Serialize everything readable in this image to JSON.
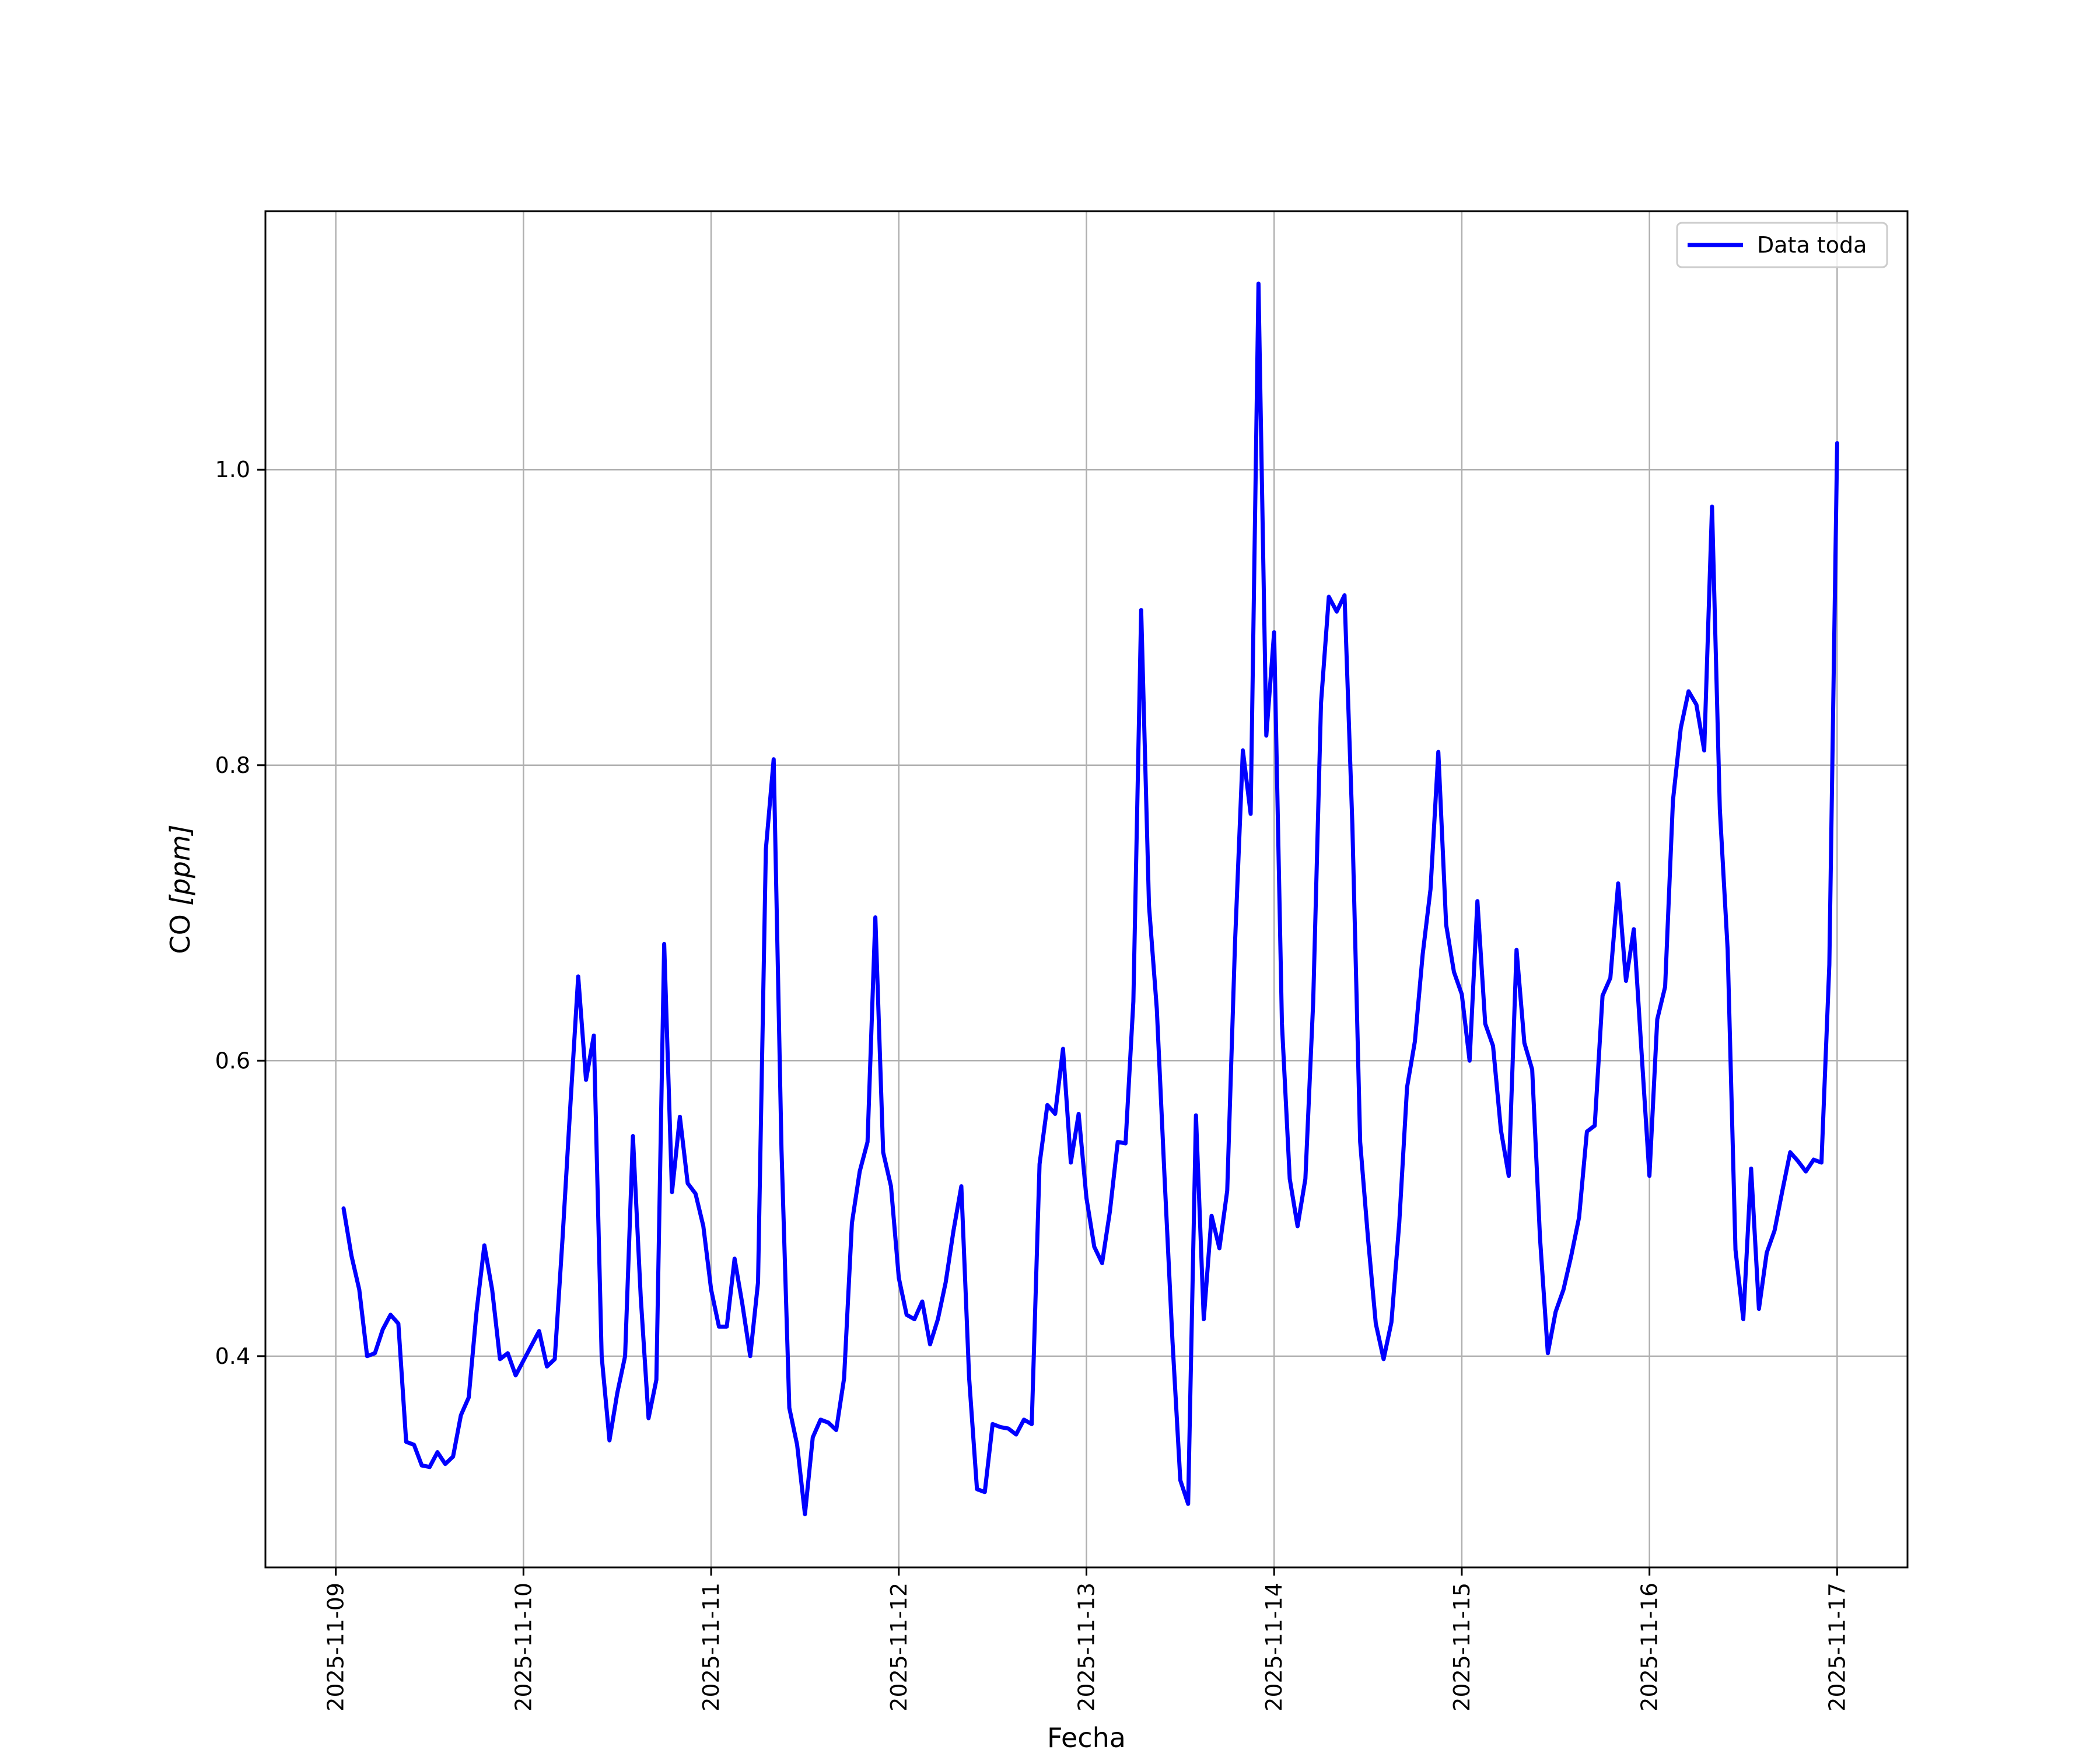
{
  "chart_data": {
    "type": "line",
    "title": "",
    "xlabel": "Fecha",
    "ylabel": "CO [ppm]",
    "ylabel_parts": {
      "main": "CO ",
      "unit": "[ppm]"
    },
    "grid": true,
    "legend_placement": "top-right",
    "x_ticks": [
      "2025-11-09",
      "2025-11-10",
      "2025-11-11",
      "2025-11-12",
      "2025-11-13",
      "2025-11-14",
      "2025-11-15",
      "2025-11-16",
      "2025-11-17"
    ],
    "y_ticks": [
      "0.4",
      "0.6",
      "0.8",
      "1.0"
    ],
    "xlim": [
      "2025-11-08 15:00",
      "2025-11-17 09:00"
    ],
    "ylim": [
      0.257,
      1.175
    ],
    "series": [
      {
        "name": "Data toda",
        "color": "#0000ff",
        "x": [
          "2025-11-09 01:00",
          "2025-11-09 02:00",
          "2025-11-09 03:00",
          "2025-11-09 04:00",
          "2025-11-09 05:00",
          "2025-11-09 06:00",
          "2025-11-09 07:00",
          "2025-11-09 08:00",
          "2025-11-09 09:00",
          "2025-11-09 10:00",
          "2025-11-09 11:00",
          "2025-11-09 12:00",
          "2025-11-09 13:00",
          "2025-11-09 14:00",
          "2025-11-09 15:00",
          "2025-11-09 16:00",
          "2025-11-09 17:00",
          "2025-11-09 18:00",
          "2025-11-09 19:00",
          "2025-11-09 20:00",
          "2025-11-09 21:00",
          "2025-11-09 22:00",
          "2025-11-09 23:00",
          "2025-11-10 00:00",
          "2025-11-10 01:00",
          "2025-11-10 02:00",
          "2025-11-10 03:00",
          "2025-11-10 04:00",
          "2025-11-10 05:00",
          "2025-11-10 06:00",
          "2025-11-10 07:00",
          "2025-11-10 08:00",
          "2025-11-10 09:00",
          "2025-11-10 10:00",
          "2025-11-10 11:00",
          "2025-11-10 12:00",
          "2025-11-10 13:00",
          "2025-11-10 14:00",
          "2025-11-10 15:00",
          "2025-11-10 16:00",
          "2025-11-10 17:00",
          "2025-11-10 18:00",
          "2025-11-10 19:00",
          "2025-11-10 20:00",
          "2025-11-10 21:00",
          "2025-11-10 22:00",
          "2025-11-10 23:00",
          "2025-11-11 00:00",
          "2025-11-11 01:00",
          "2025-11-11 02:00",
          "2025-11-11 03:00",
          "2025-11-11 04:00",
          "2025-11-11 05:00",
          "2025-11-11 06:00",
          "2025-11-11 07:00",
          "2025-11-11 08:00",
          "2025-11-11 09:00",
          "2025-11-11 10:00",
          "2025-11-11 11:00",
          "2025-11-11 12:00",
          "2025-11-11 13:00",
          "2025-11-11 14:00",
          "2025-11-11 15:00",
          "2025-11-11 16:00",
          "2025-11-11 17:00",
          "2025-11-11 18:00",
          "2025-11-11 19:00",
          "2025-11-11 20:00",
          "2025-11-11 21:00",
          "2025-11-11 22:00",
          "2025-11-11 23:00",
          "2025-11-12 00:00",
          "2025-11-12 01:00",
          "2025-11-12 02:00",
          "2025-11-12 03:00",
          "2025-11-12 04:00",
          "2025-11-12 05:00",
          "2025-11-12 06:00",
          "2025-11-12 07:00",
          "2025-11-12 08:00",
          "2025-11-12 09:00",
          "2025-11-12 10:00",
          "2025-11-12 11:00",
          "2025-11-12 12:00",
          "2025-11-12 13:00",
          "2025-11-12 14:00",
          "2025-11-12 15:00",
          "2025-11-12 16:00",
          "2025-11-12 17:00",
          "2025-11-12 18:00",
          "2025-11-12 19:00",
          "2025-11-12 20:00",
          "2025-11-12 21:00",
          "2025-11-12 22:00",
          "2025-11-12 23:00",
          "2025-11-13 00:00",
          "2025-11-13 01:00",
          "2025-11-13 02:00",
          "2025-11-13 03:00",
          "2025-11-13 04:00",
          "2025-11-13 05:00",
          "2025-11-13 06:00",
          "2025-11-13 07:00",
          "2025-11-13 08:00",
          "2025-11-13 09:00",
          "2025-11-13 10:00",
          "2025-11-13 11:00",
          "2025-11-13 12:00",
          "2025-11-13 13:00",
          "2025-11-13 14:00",
          "2025-11-13 15:00",
          "2025-11-13 16:00",
          "2025-11-13 17:00",
          "2025-11-13 18:00",
          "2025-11-13 19:00",
          "2025-11-13 20:00",
          "2025-11-13 21:00",
          "2025-11-13 22:00",
          "2025-11-13 23:00",
          "2025-11-14 00:00",
          "2025-11-14 01:00",
          "2025-11-14 02:00",
          "2025-11-14 03:00",
          "2025-11-14 04:00",
          "2025-11-14 05:00",
          "2025-11-14 06:00",
          "2025-11-14 07:00",
          "2025-11-14 08:00",
          "2025-11-14 09:00",
          "2025-11-14 10:00",
          "2025-11-14 11:00",
          "2025-11-14 12:00",
          "2025-11-14 13:00",
          "2025-11-14 14:00",
          "2025-11-14 15:00",
          "2025-11-14 16:00",
          "2025-11-14 17:00",
          "2025-11-14 18:00",
          "2025-11-14 19:00",
          "2025-11-14 20:00",
          "2025-11-14 21:00",
          "2025-11-14 22:00",
          "2025-11-14 23:00",
          "2025-11-15 00:00",
          "2025-11-15 01:00",
          "2025-11-15 02:00",
          "2025-11-15 03:00",
          "2025-11-15 04:00",
          "2025-11-15 05:00",
          "2025-11-15 06:00",
          "2025-11-15 07:00",
          "2025-11-15 08:00",
          "2025-11-15 09:00",
          "2025-11-15 10:00",
          "2025-11-15 11:00",
          "2025-11-15 12:00",
          "2025-11-15 13:00",
          "2025-11-15 14:00",
          "2025-11-15 15:00",
          "2025-11-15 16:00",
          "2025-11-15 17:00",
          "2025-11-15 18:00",
          "2025-11-15 19:00",
          "2025-11-15 20:00",
          "2025-11-15 21:00",
          "2025-11-15 22:00",
          "2025-11-15 23:00",
          "2025-11-16 00:00",
          "2025-11-16 01:00",
          "2025-11-16 02:00",
          "2025-11-16 03:00",
          "2025-11-16 04:00",
          "2025-11-16 05:00",
          "2025-11-16 06:00",
          "2025-11-16 07:00",
          "2025-11-16 08:00",
          "2025-11-16 09:00",
          "2025-11-16 10:00",
          "2025-11-16 11:00",
          "2025-11-16 12:00",
          "2025-11-16 13:00",
          "2025-11-16 14:00",
          "2025-11-16 15:00",
          "2025-11-16 16:00",
          "2025-11-16 17:00",
          "2025-11-16 18:00",
          "2025-11-16 19:00",
          "2025-11-16 20:00",
          "2025-11-16 21:00",
          "2025-11-16 22:00",
          "2025-11-16 23:00",
          "2025-11-17 00:00"
        ],
        "values": [
          0.5,
          0.468,
          0.445,
          0.4,
          0.402,
          0.418,
          0.428,
          0.422,
          0.342,
          0.34,
          0.326,
          0.325,
          0.335,
          0.327,
          0.332,
          0.36,
          0.372,
          0.43,
          0.475,
          0.445,
          0.398,
          0.402,
          0.387,
          0.397,
          0.407,
          0.417,
          0.393,
          0.398,
          0.48,
          0.57,
          0.657,
          0.587,
          0.617,
          0.4,
          0.343,
          0.375,
          0.4,
          0.549,
          0.44,
          0.358,
          0.384,
          0.679,
          0.511,
          0.562,
          0.517,
          0.51,
          0.488,
          0.445,
          0.42,
          0.42,
          0.466,
          0.435,
          0.4,
          0.45,
          0.743,
          0.804,
          0.54,
          0.365,
          0.34,
          0.293,
          0.345,
          0.357,
          0.355,
          0.35,
          0.385,
          0.49,
          0.525,
          0.545,
          0.697,
          0.538,
          0.515,
          0.453,
          0.428,
          0.425,
          0.437,
          0.408,
          0.425,
          0.45,
          0.485,
          0.515,
          0.385,
          0.31,
          0.308,
          0.354,
          0.352,
          0.351,
          0.347,
          0.357,
          0.354,
          0.53,
          0.57,
          0.564,
          0.608,
          0.531,
          0.564,
          0.507,
          0.474,
          0.463,
          0.498,
          0.545,
          0.544,
          0.64,
          0.905,
          0.705,
          0.635,
          0.52,
          0.41,
          0.316,
          0.3,
          0.563,
          0.425,
          0.495,
          0.473,
          0.512,
          0.68,
          0.81,
          0.767,
          1.126,
          0.82,
          0.89,
          0.625,
          0.52,
          0.488,
          0.52,
          0.64,
          0.842,
          0.914,
          0.904,
          0.915,
          0.76,
          0.545,
          0.48,
          0.422,
          0.398,
          0.423,
          0.49,
          0.582,
          0.613,
          0.672,
          0.716,
          0.809,
          0.692,
          0.66,
          0.645,
          0.6,
          0.708,
          0.625,
          0.61,
          0.553,
          0.522,
          0.675,
          0.612,
          0.594,
          0.48,
          0.402,
          0.43,
          0.445,
          0.468,
          0.494,
          0.552,
          0.556,
          0.644,
          0.656,
          0.72,
          0.654,
          0.689,
          0.605,
          0.522,
          0.628,
          0.65,
          0.776,
          0.825,
          0.85,
          0.841,
          0.81,
          0.975,
          0.77,
          0.675,
          0.472,
          0.425,
          0.527,
          0.432,
          0.47,
          0.485,
          0.512,
          0.538,
          0.532,
          0.525,
          0.533,
          0.531,
          0.665,
          1.018
        ]
      }
    ]
  }
}
